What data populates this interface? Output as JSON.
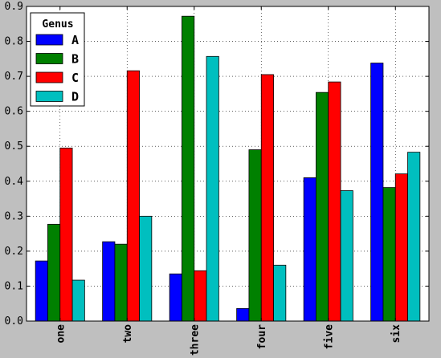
{
  "chart_data": {
    "type": "bar",
    "categories": [
      "one",
      "two",
      "three",
      "four",
      "five",
      "six"
    ],
    "series": [
      {
        "name": "A",
        "color": "#0000ff",
        "values": [
          0.172,
          0.227,
          0.135,
          0.036,
          0.41,
          0.738
        ]
      },
      {
        "name": "B",
        "color": "#008000",
        "values": [
          0.277,
          0.22,
          0.872,
          0.49,
          0.654,
          0.382
        ]
      },
      {
        "name": "C",
        "color": "#ff0000",
        "values": [
          0.495,
          0.716,
          0.144,
          0.705,
          0.684,
          0.421
        ]
      },
      {
        "name": "D",
        "color": "#00bfbf",
        "values": [
          0.117,
          0.3,
          0.757,
          0.16,
          0.373,
          0.483
        ]
      }
    ],
    "legend_title": "Genus",
    "legend_position": "top-left",
    "ylim": [
      0,
      0.9
    ],
    "yticks": [
      "0.0",
      "0.1",
      "0.2",
      "0.3",
      "0.4",
      "0.5",
      "0.6",
      "0.7",
      "0.8",
      "0.9"
    ],
    "grid": true,
    "xtick_rotation": "vertical"
  }
}
